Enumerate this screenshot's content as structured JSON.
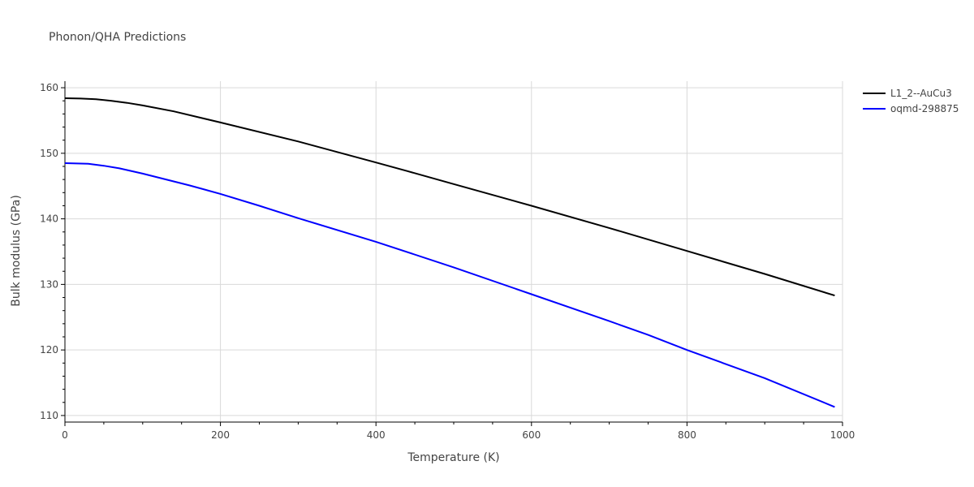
{
  "chart_data": {
    "type": "line",
    "title": "Phonon/QHA Predictions",
    "xlabel": "Temperature (K)",
    "ylabel": "Bulk modulus (GPa)",
    "xlim": [
      0,
      1000
    ],
    "ylim": [
      109,
      161
    ],
    "x_ticks": [
      0,
      200,
      400,
      600,
      800,
      1000
    ],
    "y_ticks": [
      110,
      120,
      130,
      140,
      150,
      160
    ],
    "grid": true,
    "legend_position": "top-right",
    "series": [
      {
        "name": "L1_2--AuCu3",
        "color": "#000000",
        "x": [
          0,
          20,
          40,
          60,
          80,
          100,
          140,
          200,
          300,
          400,
          440,
          500,
          600,
          700,
          800,
          900,
          990
        ],
        "y": [
          158.4,
          158.35,
          158.25,
          158.0,
          157.7,
          157.3,
          156.4,
          154.7,
          151.8,
          148.6,
          147.3,
          145.3,
          142.0,
          138.6,
          135.1,
          131.6,
          128.3
        ]
      },
      {
        "name": "oqmd-298875",
        "color": "#0000ff",
        "x": [
          0,
          30,
          50,
          70,
          100,
          160,
          200,
          250,
          300,
          400,
          500,
          600,
          700,
          750,
          800,
          900,
          990
        ],
        "y": [
          148.5,
          148.4,
          148.1,
          147.7,
          146.9,
          145.1,
          143.8,
          142.0,
          140.1,
          136.5,
          132.6,
          128.5,
          124.4,
          122.3,
          120.0,
          115.7,
          111.3
        ]
      }
    ]
  }
}
